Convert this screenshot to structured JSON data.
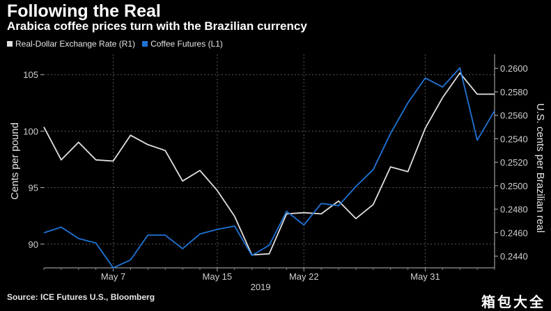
{
  "header": {
    "title": "Following the Real",
    "subtitle": "Arabica coffee prices turn with the Brazilian currency"
  },
  "footer": {
    "source": "Source: ICE Futures U.S., Bloomberg",
    "watermark": "箱包大全"
  },
  "colors": {
    "background": "#000000",
    "real_line": "#e0e0e0",
    "coffee_line": "#1f74d6",
    "grid": "#5a5a5a"
  },
  "chart_data": {
    "type": "line",
    "title": "Following the Real",
    "subtitle": "Arabica coffee prices turn with the Brazilian currency",
    "legend_position": "top-left",
    "grid": true,
    "x": [
      "2019-05-01",
      "2019-05-02",
      "2019-05-03",
      "2019-05-06",
      "2019-05-07",
      "2019-05-08",
      "2019-05-09",
      "2019-05-10",
      "2019-05-13",
      "2019-05-14",
      "2019-05-15",
      "2019-05-16",
      "2019-05-17",
      "2019-05-20",
      "2019-05-21",
      "2019-05-22",
      "2019-05-23",
      "2019-05-24",
      "2019-05-27",
      "2019-05-28",
      "2019-05-29",
      "2019-05-30",
      "2019-05-31",
      "2019-06-03",
      "2019-06-04",
      "2019-06-05",
      "2019-06-06"
    ],
    "x_ticks": [
      {
        "date": "2019-05-07",
        "label": "May 7"
      },
      {
        "date": "2019-05-15",
        "label": "May 15"
      },
      {
        "date": "2019-05-22",
        "label": "May 22"
      },
      {
        "date": "2019-05-31",
        "label": "May 31"
      }
    ],
    "x_year_label": "2019",
    "left_axis": {
      "label": "Cents per pound",
      "ylim": [
        87.9,
        106.8
      ],
      "ticks": [
        90,
        95,
        100,
        105
      ]
    },
    "right_axis": {
      "label": "U.S. cents per Brazilian real",
      "ylim": [
        0.243,
        0.2612
      ],
      "ticks": [
        0.244,
        0.246,
        0.248,
        0.25,
        0.252,
        0.254,
        0.256,
        0.258,
        0.26
      ],
      "tick_labels": [
        "0.2440",
        "0.2460",
        "0.2480",
        "0.2500",
        "0.2520",
        "0.2540",
        "0.2560",
        "0.2580",
        "0.2600"
      ]
    },
    "series": [
      {
        "name": "Real-Dollar Exchange Rate (R1)",
        "axis": "right",
        "color": "#e0e0e0",
        "values": [
          0.255,
          0.2522,
          0.2537,
          0.2522,
          0.2521,
          0.2543,
          0.2535,
          0.253,
          0.2504,
          0.2513,
          0.2496,
          0.2474,
          0.2441,
          0.2442,
          0.2476,
          0.2477,
          0.2476,
          0.2487,
          0.2472,
          0.2484,
          0.2516,
          0.2512,
          0.2549,
          0.2575,
          0.2596,
          0.2578,
          0.2578
        ]
      },
      {
        "name": "Coffee Futures (L1)",
        "axis": "left",
        "color": "#1f74d6",
        "values": [
          91.0,
          91.5,
          90.5,
          90.1,
          87.9,
          88.6,
          90.8,
          90.8,
          89.6,
          90.9,
          91.3,
          91.6,
          89.0,
          89.9,
          92.9,
          91.7,
          93.6,
          93.4,
          95.1,
          96.6,
          99.8,
          102.5,
          104.7,
          103.9,
          105.6,
          99.2,
          101.8
        ]
      }
    ]
  }
}
